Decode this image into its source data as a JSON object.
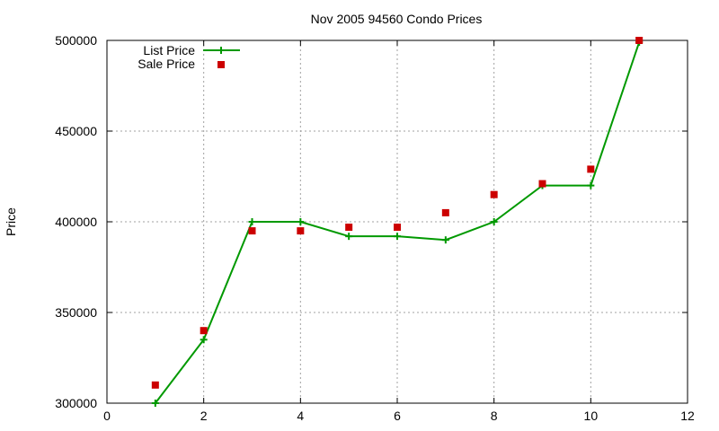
{
  "chart_data": {
    "type": "line",
    "title": "Nov 2005 94560 Condo Prices",
    "xlabel": "",
    "ylabel": "Price",
    "xlim": [
      0,
      12
    ],
    "ylim": [
      300000,
      500000
    ],
    "x_ticks": [
      0,
      2,
      4,
      6,
      8,
      10,
      12
    ],
    "y_ticks": [
      300000,
      350000,
      400000,
      450000,
      500000
    ],
    "grid": true,
    "legend_position": "top-left",
    "series": [
      {
        "name": "List Price",
        "style": "line-with-plus-markers",
        "color": "#009900",
        "x": [
          1,
          2,
          3,
          4,
          5,
          6,
          7,
          8,
          9,
          10,
          11
        ],
        "y": [
          300000,
          335000,
          400000,
          400000,
          392000,
          392000,
          390000,
          400000,
          420000,
          420000,
          499000
        ]
      },
      {
        "name": "Sale Price",
        "style": "square-markers",
        "color": "#cc0000",
        "x": [
          1,
          2,
          3,
          4,
          5,
          6,
          7,
          8,
          9,
          10,
          11
        ],
        "y": [
          310000,
          340000,
          395000,
          395000,
          397000,
          397000,
          405000,
          415000,
          421000,
          429000,
          500000
        ]
      }
    ]
  }
}
